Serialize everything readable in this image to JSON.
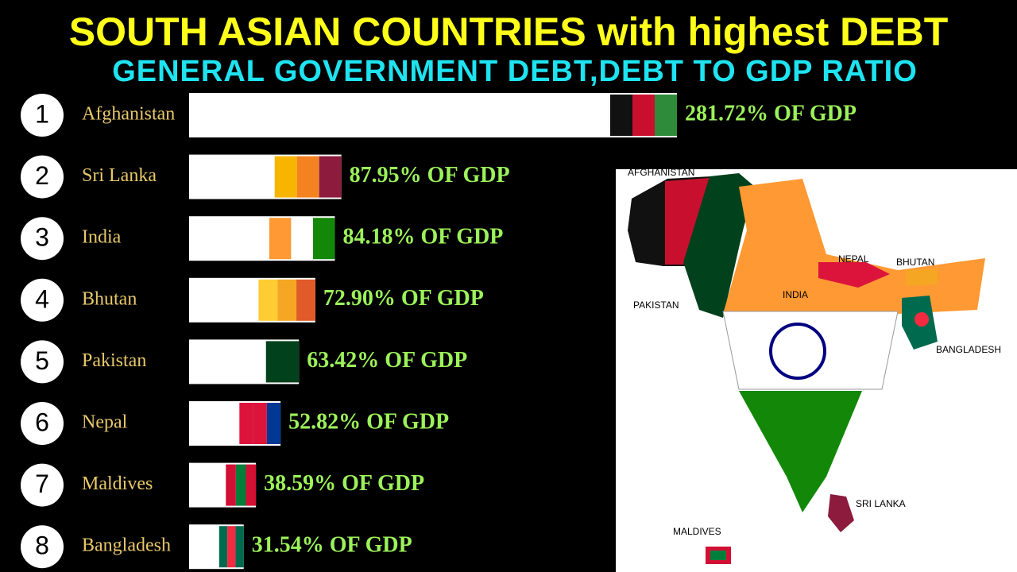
{
  "chart_data": {
    "type": "bar",
    "title": "SOUTH ASIAN  COUNTRIES with highest DEBT",
    "subtitle": "GENERAL GOVERNMENT DEBT,DEBT TO GDP RATIO",
    "ranks": [
      1,
      2,
      3,
      4,
      5,
      6,
      7,
      8
    ],
    "categories": [
      "Afghanistan",
      "Sri Lanka",
      "India",
      "Bhutan",
      "Pakistan",
      "Nepal",
      "Maldives",
      "Bangladesh"
    ],
    "values": [
      281.72,
      87.95,
      84.18,
      72.9,
      63.42,
      52.82,
      38.59,
      31.54
    ],
    "value_labels": [
      "281.72% OF GDP",
      "87.95% OF GDP",
      "84.18% OF GDP",
      "72.90% OF GDP",
      "63.42% OF GDP",
      "52.82% OF GDP",
      "38.59% OF GDP",
      "31.54% OF GDP"
    ],
    "color": "#ffffff",
    "flag_colors": [
      [
        "#111111",
        "#c8102e",
        "#2e8b3a"
      ],
      [
        "#f7b500",
        "#f58220",
        "#8d1b3d"
      ],
      [
        "#ff9933",
        "#ffffff",
        "#138808"
      ],
      [
        "#ffcc33",
        "#f5a623",
        "#e05a2a"
      ],
      [
        "#ffffff",
        "#01411c",
        "#01411c"
      ],
      [
        "#dc143c",
        "#dc143c",
        "#003893"
      ],
      [
        "#d21034",
        "#007e3a",
        "#d21034"
      ],
      [
        "#006a4e",
        "#f42a41",
        "#006a4e"
      ]
    ],
    "map_labels": [
      "AFGHANISTAN",
      "PAKISTAN",
      "NEPAL",
      "BHUTAN",
      "INDIA",
      "BANGLADESH",
      "SRI LANKA",
      "MALDIVES"
    ]
  }
}
